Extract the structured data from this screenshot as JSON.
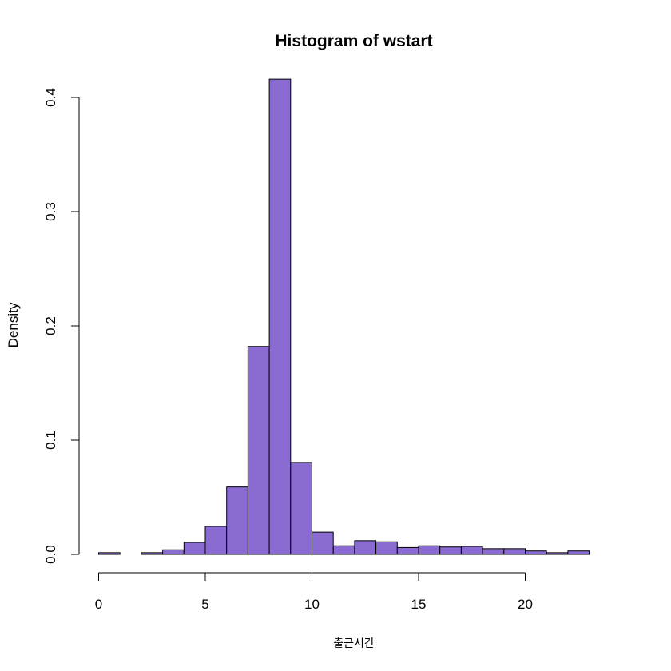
{
  "chart_data": {
    "type": "bar",
    "title": "Histogram of wstart",
    "xlabel": "출근시간",
    "ylabel": "Density",
    "bar_color": "#8a6bd1",
    "bins": [
      {
        "x0": 0,
        "x1": 1,
        "density": 0.0015
      },
      {
        "x0": 1,
        "x1": 2,
        "density": 0.0
      },
      {
        "x0": 2,
        "x1": 3,
        "density": 0.0015
      },
      {
        "x0": 3,
        "x1": 4,
        "density": 0.004
      },
      {
        "x0": 4,
        "x1": 5,
        "density": 0.0105
      },
      {
        "x0": 5,
        "x1": 6,
        "density": 0.0245
      },
      {
        "x0": 6,
        "x1": 7,
        "density": 0.059
      },
      {
        "x0": 7,
        "x1": 8,
        "density": 0.182
      },
      {
        "x0": 8,
        "x1": 9,
        "density": 0.416
      },
      {
        "x0": 9,
        "x1": 10,
        "density": 0.0805
      },
      {
        "x0": 10,
        "x1": 11,
        "density": 0.0195
      },
      {
        "x0": 11,
        "x1": 12,
        "density": 0.0075
      },
      {
        "x0": 12,
        "x1": 13,
        "density": 0.012
      },
      {
        "x0": 13,
        "x1": 14,
        "density": 0.011
      },
      {
        "x0": 14,
        "x1": 15,
        "density": 0.006
      },
      {
        "x0": 15,
        "x1": 16,
        "density": 0.0075
      },
      {
        "x0": 16,
        "x1": 17,
        "density": 0.0065
      },
      {
        "x0": 17,
        "x1": 18,
        "density": 0.007
      },
      {
        "x0": 18,
        "x1": 19,
        "density": 0.005
      },
      {
        "x0": 19,
        "x1": 20,
        "density": 0.005
      },
      {
        "x0": 20,
        "x1": 21,
        "density": 0.003
      },
      {
        "x0": 21,
        "x1": 22,
        "density": 0.0015
      },
      {
        "x0": 22,
        "x1": 23,
        "density": 0.003
      }
    ],
    "xticks": [
      0,
      5,
      10,
      15,
      20
    ],
    "xtick_labels": [
      "0",
      "5",
      "10",
      "15",
      "20"
    ],
    "yticks": [
      0.0,
      0.1,
      0.2,
      0.3,
      0.4
    ],
    "ytick_labels": [
      "0.0",
      "0.1",
      "0.2",
      "0.3",
      "0.4"
    ],
    "xlim": [
      0,
      23
    ],
    "ylim": [
      0,
      0.4
    ],
    "grid": false,
    "legend": "none"
  }
}
